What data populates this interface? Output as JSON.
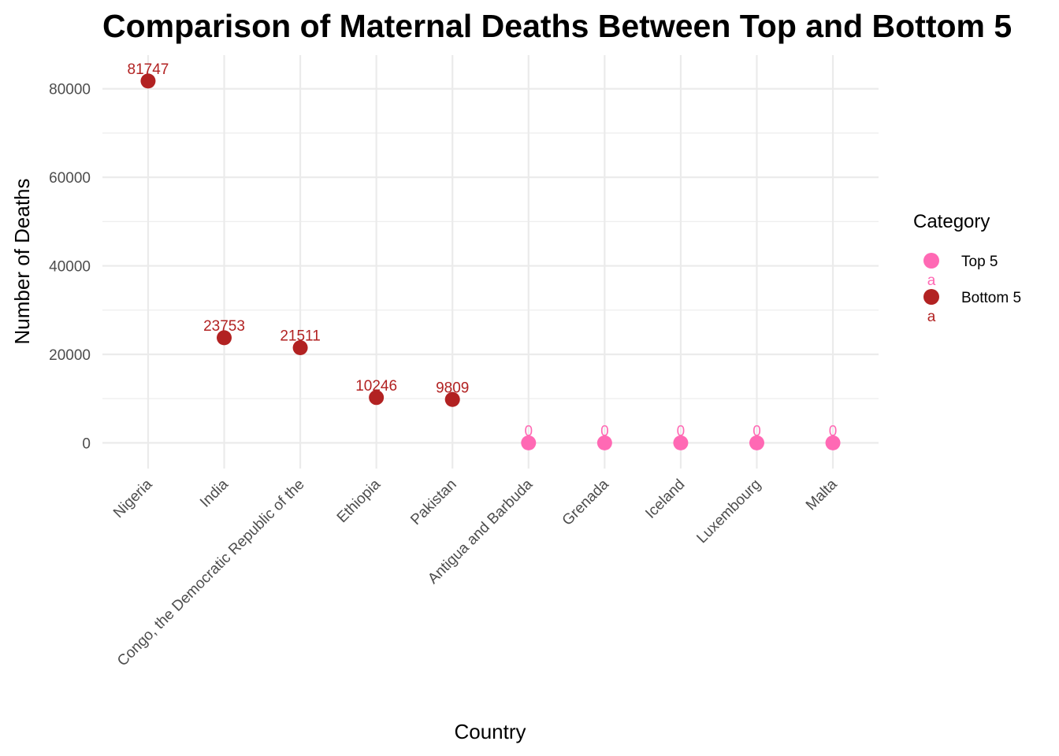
{
  "chart_data": {
    "type": "scatter",
    "title": "Comparison of Maternal Deaths Between Top and Bottom 5",
    "xlabel": "Country",
    "ylabel": "Number of Deaths",
    "categories": [
      "Nigeria",
      "India",
      "Congo, the Democratic Republic of the",
      "Ethiopia",
      "Pakistan",
      "Antigua and Barbuda",
      "Grenada",
      "Iceland",
      "Luxembourg",
      "Malta"
    ],
    "values": [
      81747,
      23753,
      21511,
      10246,
      9809,
      0,
      0,
      0,
      0,
      0
    ],
    "data_labels": [
      "81747",
      "23753",
      "21511",
      "10246",
      "9809",
      "0",
      "0",
      "0",
      "0",
      "0"
    ],
    "groups": [
      "Bottom 5",
      "Bottom 5",
      "Bottom 5",
      "Bottom 5",
      "Bottom 5",
      "Top 5",
      "Top 5",
      "Top 5",
      "Top 5",
      "Top 5"
    ],
    "yticks": [
      0,
      20000,
      40000,
      60000,
      80000
    ],
    "ytick_labels": [
      "0",
      "20000",
      "40000",
      "60000",
      "80000"
    ],
    "ylim": [
      -5800,
      87600
    ],
    "grid": true,
    "legend": {
      "title": "Category",
      "position": "right",
      "entries": [
        {
          "label": "Top 5",
          "color": "#ff69b4",
          "key_text": "a"
        },
        {
          "label": "Bottom 5",
          "color": "#b22222",
          "key_text": "a"
        }
      ]
    },
    "colors": {
      "Top 5": "#ff69b4",
      "Bottom 5": "#b22222"
    }
  }
}
